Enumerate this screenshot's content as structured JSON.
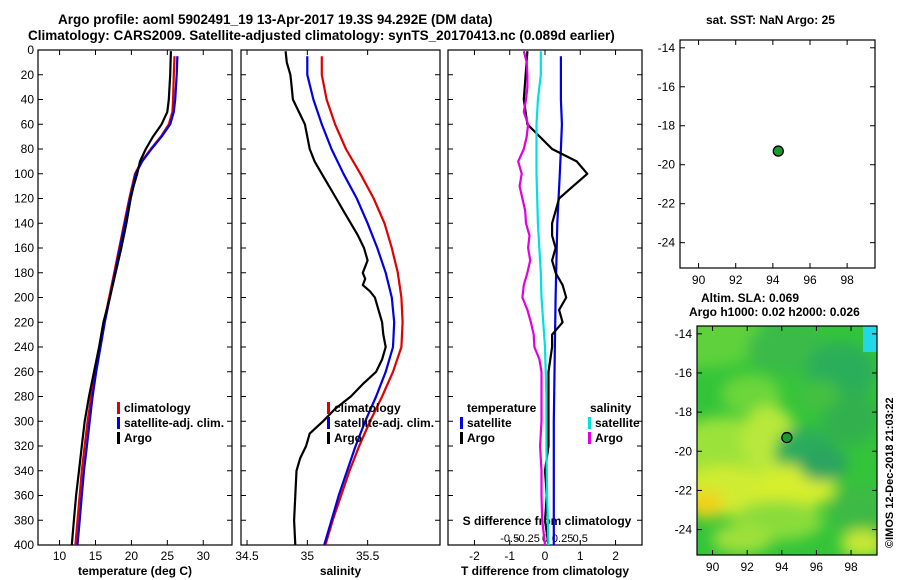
{
  "header": {
    "title_line1": "Argo profile: aoml 5902491_19 13-Apr-2017 19.3S 94.292E (DM data)",
    "title_line2": "Climatology: CARS2009. Satellite-adjusted climatology: synTS_20170413.nc (0.089d earlier)"
  },
  "footer": {
    "stamp": "©IMOS 12-Dec-2018 21:03:22"
  },
  "colors": {
    "climatology": "#e00000",
    "satellite": "#0000e0",
    "argo": "#000000",
    "sal_satellite": "#00e0e0",
    "sal_argo": "#e000e0"
  },
  "chart_data": [
    {
      "type": "line",
      "id": "temperature",
      "xlabel": "temperature (deg C)",
      "ylabel": "",
      "xlim": [
        7,
        34
      ],
      "ylim": [
        400,
        0
      ],
      "xticks": [
        10,
        15,
        20,
        25,
        30
      ],
      "yticks": [
        0,
        20,
        40,
        60,
        80,
        100,
        120,
        140,
        160,
        180,
        200,
        220,
        240,
        260,
        280,
        300,
        320,
        340,
        360,
        380,
        400
      ],
      "legend": [
        "climatology",
        "satellite-adj. clim.",
        "Argo"
      ],
      "legend_position": "lower-right",
      "series": [
        {
          "name": "climatology",
          "color_key": "climatology",
          "depth": [
            5,
            20,
            40,
            50,
            60,
            70,
            80,
            90,
            100,
            120,
            140,
            160,
            180,
            200,
            220,
            240,
            260,
            280,
            300,
            320,
            340,
            360,
            380,
            400
          ],
          "values": [
            26.0,
            25.9,
            25.8,
            25.7,
            25.2,
            24.1,
            22.7,
            21.4,
            20.5,
            19.7,
            19.0,
            18.3,
            17.6,
            16.9,
            16.2,
            15.6,
            15.0,
            14.4,
            13.9,
            13.5,
            13.1,
            12.8,
            12.5,
            12.2
          ]
        },
        {
          "name": "satellite-adj. clim.",
          "color_key": "satellite",
          "depth": [
            5,
            20,
            40,
            50,
            60,
            70,
            80,
            90,
            100,
            120,
            140,
            160,
            180,
            200,
            220,
            240,
            260,
            280,
            300,
            320,
            340,
            360,
            380,
            400
          ],
          "values": [
            26.4,
            26.3,
            26.1,
            25.9,
            25.4,
            24.2,
            22.8,
            21.5,
            20.6,
            19.8,
            19.1,
            18.4,
            17.7,
            17.0,
            16.3,
            15.7,
            15.1,
            14.6,
            14.2,
            13.8,
            13.4,
            13.1,
            12.8,
            12.5
          ]
        },
        {
          "name": "Argo",
          "color_key": "argo",
          "depth": [
            1,
            20,
            40,
            50,
            60,
            70,
            80,
            90,
            100,
            110,
            120,
            140,
            160,
            180,
            200,
            220,
            240,
            260,
            280,
            300,
            320,
            340,
            360,
            380,
            400
          ],
          "values": [
            25.5,
            25.4,
            25.2,
            25.0,
            24.2,
            23.0,
            22.0,
            21.2,
            20.8,
            20.3,
            19.9,
            19.3,
            18.6,
            17.8,
            17.0,
            16.1,
            15.5,
            14.8,
            14.1,
            13.5,
            13.1,
            12.7,
            12.3,
            12.0,
            11.7
          ]
        }
      ]
    },
    {
      "type": "line",
      "id": "salinity",
      "xlabel": "salinity",
      "ylabel": "",
      "xlim": [
        34.45,
        36.1
      ],
      "ylim": [
        400,
        0
      ],
      "xticks": [
        34.5,
        35,
        35.5
      ],
      "xtick_labels": [
        "34.5",
        "35",
        "35.5"
      ],
      "legend": [
        "climatology",
        "satellite-adj. clim.",
        "Argo"
      ],
      "legend_position": "lower-right",
      "series": [
        {
          "name": "climatology",
          "color_key": "climatology",
          "depth": [
            5,
            20,
            40,
            60,
            80,
            100,
            120,
            140,
            160,
            180,
            200,
            220,
            240,
            260,
            280,
            300,
            320,
            340,
            360,
            380,
            400
          ],
          "values": [
            35.12,
            35.12,
            35.16,
            35.23,
            35.32,
            35.44,
            35.55,
            35.64,
            35.7,
            35.75,
            35.78,
            35.79,
            35.78,
            35.71,
            35.62,
            35.52,
            35.43,
            35.35,
            35.28,
            35.21,
            35.15
          ]
        },
        {
          "name": "satellite-adj. clim.",
          "color_key": "satellite",
          "depth": [
            5,
            20,
            40,
            60,
            80,
            100,
            120,
            140,
            160,
            180,
            200,
            220,
            240,
            260,
            280,
            300,
            320,
            340,
            360,
            380,
            400
          ],
          "values": [
            35.0,
            35.0,
            35.05,
            35.12,
            35.2,
            35.3,
            35.41,
            35.5,
            35.58,
            35.65,
            35.7,
            35.72,
            35.71,
            35.65,
            35.57,
            35.48,
            35.4,
            35.33,
            35.26,
            35.2,
            35.14
          ]
        },
        {
          "name": "Argo",
          "color_key": "argo",
          "depth": [
            1,
            10,
            20,
            30,
            40,
            50,
            60,
            70,
            80,
            90,
            100,
            110,
            120,
            130,
            140,
            150,
            160,
            170,
            180,
            185,
            190,
            195,
            200,
            210,
            220,
            230,
            240,
            250,
            260,
            270,
            280,
            290,
            300,
            310,
            320,
            330,
            340,
            360,
            380,
            400
          ],
          "values": [
            34.82,
            34.83,
            34.86,
            34.87,
            34.88,
            34.93,
            34.98,
            35.0,
            35.02,
            35.06,
            35.12,
            35.18,
            35.24,
            35.3,
            35.36,
            35.42,
            35.47,
            35.5,
            35.46,
            35.48,
            35.46,
            35.52,
            35.56,
            35.59,
            35.62,
            35.63,
            35.65,
            35.62,
            35.57,
            35.46,
            35.36,
            35.23,
            35.13,
            35.02,
            34.99,
            34.94,
            34.91,
            34.9,
            34.89,
            34.9
          ]
        }
      ]
    },
    {
      "type": "line",
      "id": "differences",
      "xlabel": "T difference from climatology",
      "x2label": "S difference from climatology",
      "xlim": [
        -2.75,
        2.75
      ],
      "ylim": [
        400,
        0
      ],
      "xticks": [
        -2,
        -1,
        0,
        1,
        2
      ],
      "x2ticks": [
        -0.5,
        -0.25,
        0,
        0.25,
        0.5
      ],
      "x2lim": [
        -1.375,
        1.375
      ],
      "legend_groups": [
        {
          "title": "temperature",
          "entries": [
            "satellite",
            "Argo"
          ]
        },
        {
          "title": "salinity",
          "entries": [
            "satellite",
            "Argo"
          ]
        }
      ],
      "series": [
        {
          "name": "temperature satellite",
          "color_key": "satellite",
          "axis": "T",
          "depth": [
            5,
            40,
            60,
            80,
            100,
            140,
            200,
            300,
            400
          ],
          "values": [
            0.45,
            0.45,
            0.48,
            0.45,
            0.42,
            0.35,
            0.3,
            0.25,
            0.25
          ]
        },
        {
          "name": "temperature Argo",
          "color_key": "argo",
          "axis": "T",
          "depth": [
            1,
            40,
            60,
            80,
            90,
            100,
            105,
            110,
            120,
            130,
            140,
            150,
            160,
            170,
            180,
            190,
            200,
            210,
            220,
            230,
            240,
            260,
            280,
            300,
            320,
            340,
            360,
            380,
            400
          ],
          "values": [
            -0.5,
            -0.6,
            -0.5,
            0.2,
            0.9,
            1.2,
            1.0,
            0.8,
            0.4,
            0.3,
            0.2,
            0.2,
            0.3,
            0.2,
            0.3,
            0.5,
            0.6,
            0.4,
            0.5,
            0.2,
            0.2,
            0.1,
            0.1,
            0.1,
            0.1,
            0.0,
            0.05,
            0.0,
            0.1
          ]
        },
        {
          "name": "salinity satellite",
          "color_key": "sal_satellite",
          "axis": "S",
          "depth": [
            1,
            20,
            40,
            60,
            80,
            100,
            140,
            180,
            200,
            240,
            280,
            320,
            360,
            400
          ],
          "values": [
            -0.06,
            -0.06,
            -0.1,
            -0.12,
            -0.12,
            -0.12,
            -0.1,
            -0.06,
            -0.05,
            0.0,
            0.02,
            0.02,
            0.03,
            0.05
          ]
        },
        {
          "name": "salinity Argo",
          "color_key": "sal_argo",
          "axis": "S",
          "depth": [
            1,
            10,
            20,
            30,
            40,
            50,
            60,
            70,
            80,
            90,
            100,
            110,
            120,
            130,
            140,
            150,
            160,
            170,
            180,
            190,
            200,
            210,
            220,
            230,
            240,
            250,
            260,
            280,
            300,
            320,
            340,
            360,
            380,
            400
          ],
          "values": [
            -0.3,
            -0.26,
            -0.25,
            -0.25,
            -0.27,
            -0.3,
            -0.24,
            -0.26,
            -0.3,
            -0.38,
            -0.33,
            -0.36,
            -0.32,
            -0.28,
            -0.27,
            -0.22,
            -0.24,
            -0.21,
            -0.25,
            -0.3,
            -0.32,
            -0.25,
            -0.2,
            -0.16,
            -0.15,
            -0.08,
            -0.05,
            -0.05,
            -0.05,
            -0.07,
            -0.05,
            -0.05,
            -0.04,
            0.0
          ]
        }
      ]
    },
    {
      "type": "scatter",
      "id": "sst_map",
      "title": "sat. SST: NaN Argo: 25",
      "xlim": [
        89,
        99.5
      ],
      "ylim": [
        -25.3,
        -13.6
      ],
      "xticks": [
        90,
        92,
        94,
        96,
        98
      ],
      "yticks": [
        -14,
        -16,
        -18,
        -20,
        -22,
        -24
      ],
      "points": [
        {
          "x": 94.292,
          "y": -19.3,
          "label": "Argo"
        }
      ]
    },
    {
      "type": "heatmap",
      "id": "sla_map",
      "title_line1": "Altim. SLA: 0.069",
      "title_line2": "Argo h1000: 0.02 h2000: 0.026",
      "xlim": [
        89.1,
        99.5
      ],
      "ylim": [
        -25.3,
        -13.6
      ],
      "xticks": [
        90,
        92,
        94,
        96,
        98
      ],
      "yticks": [
        -14,
        -16,
        -18,
        -20,
        -22,
        -24
      ],
      "points": [
        {
          "x": 94.292,
          "y": -19.3,
          "label": "Argo"
        }
      ]
    }
  ]
}
